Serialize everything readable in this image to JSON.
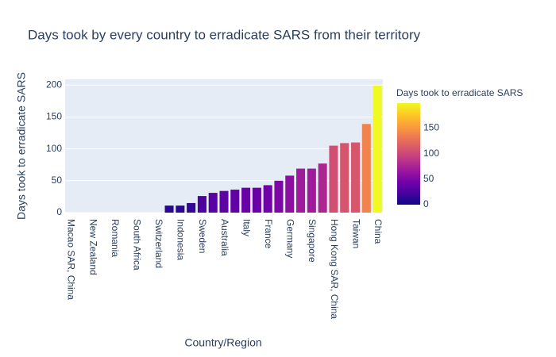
{
  "chart_data": {
    "type": "bar",
    "title": "Days took by every country to erradicate SARS from their territory",
    "x_label": "Country/Region",
    "y_label": "Days took to erradicate SARS",
    "categories": [
      "Macao SAR, China",
      null,
      "New Zealand",
      null,
      "Romania",
      null,
      "South Africa",
      null,
      "Switzerland",
      null,
      "Indonesia",
      null,
      "Sweden",
      null,
      "Australia",
      null,
      "Italy",
      null,
      "France",
      null,
      "Germany",
      null,
      "Singapore",
      null,
      "Hong Kong SAR, China",
      null,
      "Taiwan",
      null,
      "China"
    ],
    "values": [
      0,
      0,
      0,
      0,
      0,
      0,
      0,
      0,
      0,
      11,
      11,
      15,
      26,
      31,
      34,
      36,
      39,
      39,
      43,
      50,
      58,
      69,
      69,
      77,
      105,
      109,
      110,
      139,
      199
    ],
    "ylim": [
      0,
      209
    ],
    "yticks": [
      0,
      50,
      100,
      150,
      200
    ],
    "grid": true,
    "colorbar": {
      "title": "Days took to erradicate SARS",
      "clim": [
        0,
        199
      ],
      "ticks": [
        0,
        50,
        100,
        150
      ],
      "colorscale": [
        "#0d0887",
        "#46039f",
        "#7201a8",
        "#9c179e",
        "#bd3786",
        "#d8576b",
        "#ed7953",
        "#fb9f3a",
        "#fdca26",
        "#f0f921"
      ]
    }
  }
}
